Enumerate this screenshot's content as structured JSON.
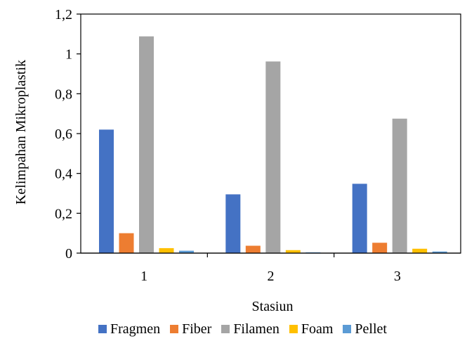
{
  "chart_data": {
    "type": "bar",
    "categories": [
      "1",
      "2",
      "3"
    ],
    "xlabel": "Stasiun",
    "ylabel": "Kelimpahan Mikroplastik",
    "ylim": [
      0,
      1.2
    ],
    "yticks": [
      "0",
      "0,2",
      "0,4",
      "0,6",
      "0,8",
      "1",
      "1,2"
    ],
    "legend_position": "bottom",
    "grid": false,
    "series": [
      {
        "name": "Fragmen",
        "color": "#4472C4",
        "values": [
          0.62,
          0.295,
          0.348
        ]
      },
      {
        "name": "Fiber",
        "color": "#ED7D31",
        "values": [
          0.1,
          0.037,
          0.052
        ]
      },
      {
        "name": "Filamen",
        "color": "#A5A5A5",
        "values": [
          1.088,
          0.962,
          0.675
        ]
      },
      {
        "name": "Foam",
        "color": "#FFC000",
        "values": [
          0.025,
          0.015,
          0.022
        ]
      },
      {
        "name": "Pellet",
        "color": "#5B9BD5",
        "values": [
          0.012,
          0.004,
          0.008
        ]
      }
    ]
  }
}
